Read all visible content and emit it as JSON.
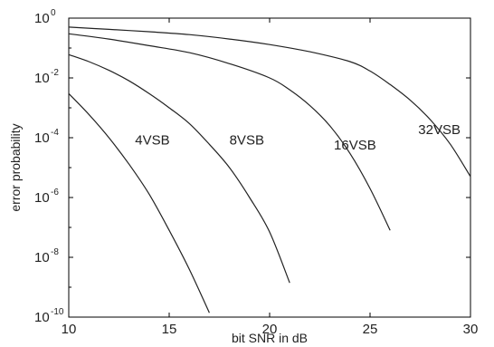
{
  "chart_data": {
    "type": "line",
    "xlabel": "bit SNR in dB",
    "ylabel": "error probability",
    "xlim": [
      10,
      30
    ],
    "ylim": [
      1e-10,
      1
    ],
    "yscale": "log",
    "grid": false,
    "x_ticks": [
      "10",
      "15",
      "20",
      "25",
      "30"
    ],
    "y_ticks": [
      {
        "base": "10",
        "exp": "0"
      },
      {
        "base": "10",
        "exp": "-2"
      },
      {
        "base": "10",
        "exp": "-4"
      },
      {
        "base": "10",
        "exp": "-6"
      },
      {
        "base": "10",
        "exp": "-8"
      },
      {
        "base": "10",
        "exp": "-10"
      }
    ],
    "series": [
      {
        "name": "4VSB",
        "x": [
          10,
          11,
          12,
          13,
          14,
          15,
          16,
          17
        ],
        "y": [
          0.003,
          0.0006,
          0.0001,
          1.3e-05,
          1.3e-06,
          8e-08,
          4e-09,
          1.4e-10
        ]
      },
      {
        "name": "8VSB",
        "x": [
          10,
          11,
          12,
          13,
          14,
          15,
          16,
          17,
          18,
          19,
          20,
          21
        ],
        "y": [
          0.06,
          0.035,
          0.018,
          0.008,
          0.003,
          0.001,
          0.0003,
          6e-05,
          1e-05,
          1e-06,
          7e-08,
          1.4e-09
        ]
      },
      {
        "name": "16VSB",
        "x": [
          10,
          12,
          14,
          16,
          18,
          20,
          21,
          22,
          23,
          24,
          25,
          26
        ],
        "y": [
          0.3,
          0.2,
          0.12,
          0.07,
          0.03,
          0.01,
          0.004,
          0.0012,
          0.00025,
          3e-05,
          2e-06,
          8e-08
        ]
      },
      {
        "name": "32VSB",
        "x": [
          10,
          12,
          14,
          16,
          18,
          20,
          22,
          24,
          25,
          26,
          27,
          28,
          29,
          30
        ],
        "y": [
          0.5,
          0.42,
          0.35,
          0.28,
          0.2,
          0.13,
          0.075,
          0.035,
          0.017,
          0.006,
          0.0018,
          0.0004,
          6e-05,
          5e-06
        ]
      }
    ],
    "colors": {
      "line": "#222222",
      "axis": "#000000"
    }
  }
}
